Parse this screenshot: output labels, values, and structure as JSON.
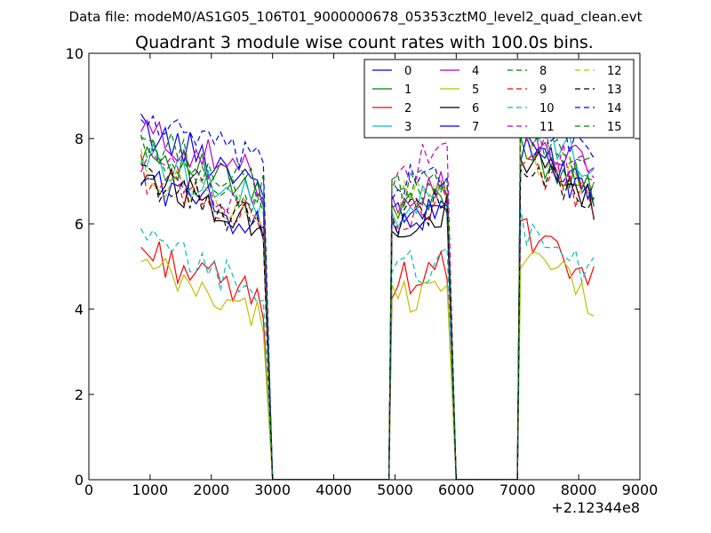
{
  "figure": {
    "suptitle": "Data file: modeM0/AS1G05_106T01_9000000678_05353cztM0_level2_quad_clean.evt"
  },
  "chart_data": {
    "type": "line",
    "title": "Quadrant 3 module wise count rates with 100.0s bins.",
    "xlabel": "",
    "ylabel": "",
    "x_offset_label": "+2.12344e8",
    "xlim": [
      0,
      9000
    ],
    "ylim": [
      0,
      10
    ],
    "xticks": [
      0,
      1000,
      2000,
      3000,
      4000,
      5000,
      6000,
      7000,
      8000,
      9000
    ],
    "xtick_labels": [
      "0",
      "1000",
      "2000",
      "3000",
      "4000",
      "5000",
      "6000",
      "7000",
      "8000",
      "9000"
    ],
    "yticks": [
      0,
      2,
      4,
      6,
      8,
      10
    ],
    "ytick_labels": [
      "0",
      "2",
      "4",
      "6",
      "8",
      "10"
    ],
    "legend_position": "top-right",
    "legend_columns": 4,
    "segment_ranges": [
      [
        850,
        2850
      ],
      [
        4950,
        5850
      ],
      [
        7050,
        8200
      ]
    ],
    "drop_ends": [
      3000,
      6000,
      7000
    ],
    "x_step": 100,
    "series": [
      {
        "name": "0",
        "color": "#0000ff",
        "dash": "solid",
        "levels": [
          7.6,
          6.3,
          7.4
        ]
      },
      {
        "name": "1",
        "color": "#008000",
        "dash": "solid",
        "levels": [
          7.2,
          6.4,
          7.3
        ]
      },
      {
        "name": "2",
        "color": "#ff0000",
        "dash": "solid",
        "levels": [
          4.8,
          4.8,
          5.2
        ]
      },
      {
        "name": "3",
        "color": "#00bfbf",
        "dash": "solid",
        "levels": [
          7.0,
          6.5,
          7.9
        ]
      },
      {
        "name": "4",
        "color": "#bf00bf",
        "dash": "solid",
        "levels": [
          7.6,
          6.8,
          7.7
        ]
      },
      {
        "name": "5",
        "color": "#bfbf00",
        "dash": "solid",
        "levels": [
          4.4,
          4.4,
          4.8
        ]
      },
      {
        "name": "6",
        "color": "#000000",
        "dash": "solid",
        "levels": [
          6.6,
          6.1,
          7.0
        ]
      },
      {
        "name": "7",
        "color": "#0000ff",
        "dash": "solid",
        "levels": [
          6.5,
          6.2,
          7.2
        ]
      },
      {
        "name": "8",
        "color": "#008000",
        "dash": "dashed",
        "levels": [
          7.4,
          7.0,
          7.8
        ]
      },
      {
        "name": "9",
        "color": "#ff0000",
        "dash": "dashed",
        "levels": [
          6.6,
          6.4,
          7.0
        ]
      },
      {
        "name": "10",
        "color": "#00bfbf",
        "dash": "dashed",
        "levels": [
          5.0,
          5.0,
          5.4
        ]
      },
      {
        "name": "11",
        "color": "#bf00bf",
        "dash": "dashed",
        "levels": [
          6.9,
          7.4,
          7.6
        ]
      },
      {
        "name": "12",
        "color": "#bfbf00",
        "dash": "dashed",
        "levels": [
          6.7,
          6.7,
          7.2
        ]
      },
      {
        "name": "13",
        "color": "#000000",
        "dash": "dashed",
        "levels": [
          6.5,
          6.3,
          7.0
        ]
      },
      {
        "name": "14",
        "color": "#0000ff",
        "dash": "dashed",
        "levels": [
          7.9,
          7.1,
          8.2
        ]
      },
      {
        "name": "15",
        "color": "#008000",
        "dash": "dashed",
        "levels": [
          7.1,
          6.9,
          7.6
        ]
      }
    ]
  }
}
